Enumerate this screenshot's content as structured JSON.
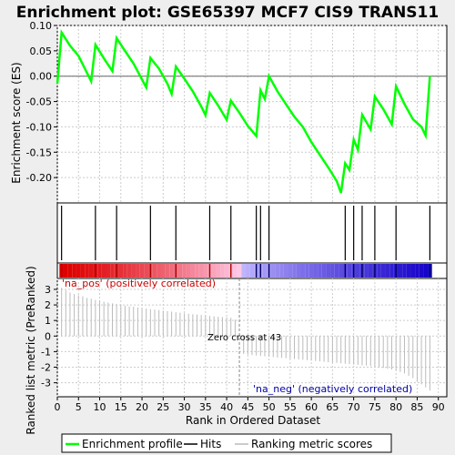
{
  "chart_data": [
    {
      "type": "line",
      "title": "Enrichment plot: GSE65397 MCF7 CIS9 TRANS11",
      "ylabel": "Enrichment score (ES)",
      "ylim": [
        -0.25,
        0.1
      ],
      "yticks": [
        0.1,
        0.05,
        0.0,
        -0.05,
        -0.1,
        -0.15,
        -0.2
      ],
      "yticklabels": [
        "0.10",
        "0.05",
        "0.00",
        "-0.05",
        "-0.10",
        "-0.15",
        "-0.20"
      ],
      "grid": true,
      "series": [
        {
          "name": "Enrichment profile",
          "color": "#00ff00",
          "x": [
            0,
            1,
            3,
            5,
            8,
            9,
            11,
            13,
            14,
            16,
            18,
            21,
            22,
            24,
            26,
            27,
            28,
            30,
            32,
            34,
            35,
            36,
            38,
            40,
            41,
            43,
            45,
            47,
            48,
            49,
            50,
            52,
            54,
            56,
            58,
            60,
            62,
            64,
            66,
            67,
            68,
            69,
            70,
            71,
            72,
            74,
            75,
            77,
            79,
            80,
            82,
            84,
            86,
            87,
            88
          ],
          "y": [
            -0.015,
            0.086,
            0.06,
            0.04,
            -0.01,
            0.062,
            0.035,
            0.01,
            0.075,
            0.05,
            0.025,
            -0.022,
            0.036,
            0.015,
            -0.015,
            -0.035,
            0.019,
            -0.005,
            -0.03,
            -0.06,
            -0.077,
            -0.033,
            -0.058,
            -0.086,
            -0.048,
            -0.072,
            -0.098,
            -0.118,
            -0.028,
            -0.045,
            0.0,
            -0.03,
            -0.055,
            -0.08,
            -0.1,
            -0.13,
            -0.155,
            -0.18,
            -0.207,
            -0.23,
            -0.172,
            -0.185,
            -0.125,
            -0.145,
            -0.076,
            -0.105,
            -0.04,
            -0.065,
            -0.095,
            -0.02,
            -0.055,
            -0.085,
            -0.1,
            -0.117,
            0.0
          ]
        }
      ]
    },
    {
      "type": "scatter",
      "name": "hits",
      "series": [
        {
          "name": "Hits",
          "color": "#000000",
          "x": [
            1,
            9,
            14,
            22,
            28,
            36,
            41,
            47,
            48,
            50,
            68,
            70,
            72,
            75,
            80,
            88
          ]
        }
      ]
    },
    {
      "type": "heatmap",
      "name": "ranked list color bar",
      "positive_label": "'na_pos' (positively correlated)",
      "negative_label": "'na_neg' (negatively correlated)",
      "positive_color": "#dd0000",
      "negative_color": "#0000cc"
    },
    {
      "type": "bar",
      "xlabel": "Rank in Ordered Dataset",
      "ylabel": "Ranked list metric (PreRanked)",
      "xlim": [
        0,
        92
      ],
      "ylim": [
        -3.9,
        3.7
      ],
      "xticks": [
        0,
        5,
        10,
        15,
        20,
        25,
        30,
        35,
        40,
        45,
        50,
        55,
        60,
        65,
        70,
        75,
        80,
        85,
        90
      ],
      "yticks": [
        3,
        2,
        1,
        0,
        -1,
        -2,
        -3
      ],
      "grid": true,
      "annotation": "Zero cross at 43",
      "zero_cross": 43,
      "series": [
        {
          "name": "Ranking metric scores",
          "color": "#bbbbbb",
          "x": [
            1,
            2,
            3,
            4,
            5,
            6,
            7,
            8,
            9,
            10,
            11,
            12,
            13,
            14,
            15,
            16,
            17,
            18,
            19,
            20,
            21,
            22,
            23,
            24,
            25,
            26,
            27,
            28,
            29,
            30,
            31,
            32,
            33,
            34,
            35,
            36,
            37,
            38,
            39,
            40,
            41,
            42,
            43,
            44,
            45,
            46,
            47,
            48,
            49,
            50,
            51,
            52,
            53,
            54,
            55,
            56,
            57,
            58,
            59,
            60,
            61,
            62,
            63,
            64,
            65,
            66,
            67,
            68,
            69,
            70,
            71,
            72,
            73,
            74,
            75,
            76,
            77,
            78,
            79,
            80,
            81,
            82,
            83,
            84,
            85,
            86,
            87,
            88
          ],
          "values": [
            3.1,
            2.95,
            2.8,
            2.7,
            2.62,
            2.55,
            2.45,
            2.4,
            2.32,
            2.28,
            2.2,
            2.15,
            2.1,
            2.05,
            2.0,
            1.95,
            1.9,
            1.88,
            1.84,
            1.8,
            1.77,
            1.73,
            1.7,
            1.67,
            1.63,
            1.6,
            1.57,
            1.53,
            1.5,
            1.46,
            1.43,
            1.4,
            1.38,
            1.35,
            1.32,
            1.29,
            1.27,
            1.24,
            1.22,
            1.2,
            1.17,
            1.05,
            0.0,
            -1.15,
            -1.2,
            -1.22,
            -1.25,
            -1.28,
            -1.3,
            -1.32,
            -1.35,
            -1.38,
            -1.4,
            -1.42,
            -1.45,
            -1.48,
            -1.5,
            -1.52,
            -1.55,
            -1.58,
            -1.6,
            -1.62,
            -1.65,
            -1.68,
            -1.7,
            -1.72,
            -1.75,
            -1.78,
            -1.8,
            -1.83,
            -1.85,
            -1.88,
            -1.9,
            -1.93,
            -1.97,
            -2.0,
            -2.05,
            -2.1,
            -2.15,
            -2.2,
            -2.3,
            -2.4,
            -2.55,
            -2.7,
            -2.9,
            -3.1,
            -3.3,
            -3.5
          ]
        }
      ]
    }
  ],
  "legend": {
    "items": [
      {
        "label": "Enrichment profile",
        "color": "#00ff00"
      },
      {
        "label": "Hits",
        "color": "#000000"
      },
      {
        "label": "Ranking metric scores",
        "color": "#bbbbbb"
      }
    ]
  }
}
